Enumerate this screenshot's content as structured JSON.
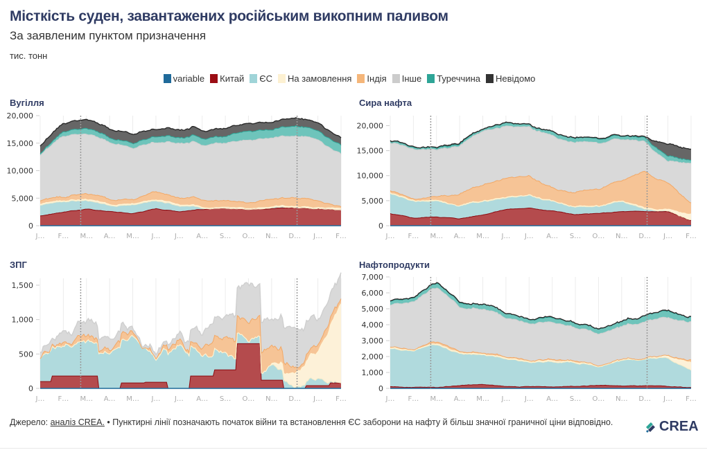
{
  "header": {
    "title": "Місткість суден, завантажених російським викопним паливом",
    "subtitle": "За заявленим пунктом призначення",
    "unit": "тис. тонн"
  },
  "legend": [
    {
      "label": "variable",
      "color": "#1f6a9a"
    },
    {
      "label": "Китай",
      "color": "#9b0d14"
    },
    {
      "label": "ЄС",
      "color": "#9fd4d8"
    },
    {
      "label": "На замовлення",
      "color": "#fdf1d2"
    },
    {
      "label": "Індія",
      "color": "#f5b67a"
    },
    {
      "label": "Інше",
      "color": "#cccccc"
    },
    {
      "label": "Туреччина",
      "color": "#2ea597"
    },
    {
      "label": "Невідомо",
      "color": "#333333"
    }
  ],
  "footer": {
    "source_prefix": "Джерело: ",
    "source_link": "аналіз CREA.",
    "note": " • Пунктирні лінії позначають початок війни та встановлення ЄС заборони на нафту й більш значної граничної ціни відповідно.",
    "logo_text": "CREA"
  },
  "chart_data": [
    {
      "type": "area",
      "stacked": true,
      "title": "Вугілля",
      "xlabel": "",
      "ylabel": "тис. тонн",
      "ylim": [
        0,
        20000
      ],
      "yticks": [
        0,
        5000,
        10000,
        15000,
        20000
      ],
      "ytick_labels": [
        "0",
        "5,000",
        "10,000",
        "15,000",
        "20,000"
      ],
      "xtick_labels": [
        "J…",
        "F…",
        "M…",
        "A…",
        "M…",
        "J…",
        "J…",
        "A…",
        "S…",
        "O…",
        "N…",
        "D…",
        "J…",
        "F…"
      ],
      "x_months": [
        0,
        1,
        2,
        3,
        4,
        5,
        6,
        7,
        8,
        9,
        10,
        11,
        12,
        13
      ],
      "vlines": [
        1.75,
        11.1
      ],
      "grid": true,
      "series": [
        {
          "name": "variable",
          "values": [
            0,
            0,
            0,
            0,
            0,
            0,
            0,
            0,
            0,
            0,
            0,
            0,
            0,
            0
          ]
        },
        {
          "name": "Китай",
          "values": [
            1800,
            2500,
            3000,
            2600,
            2200,
            3100,
            2600,
            3000,
            3100,
            3000,
            3200,
            3300,
            3100,
            2800
          ]
        },
        {
          "name": "ЄС",
          "values": [
            2000,
            2000,
            1600,
            1000,
            1500,
            1500,
            1000,
            300,
            100,
            50,
            50,
            50,
            50,
            50
          ]
        },
        {
          "name": "На замовлення",
          "values": [
            200,
            200,
            200,
            200,
            200,
            200,
            200,
            200,
            200,
            200,
            200,
            200,
            200,
            200
          ]
        },
        {
          "name": "Індія",
          "values": [
            500,
            700,
            900,
            800,
            700,
            1500,
            1200,
            1300,
            1200,
            1000,
            1600,
            1500,
            1400,
            300
          ]
        },
        {
          "name": "Інше",
          "values": [
            8300,
            11000,
            10800,
            10300,
            9400,
            9000,
            10000,
            10200,
            10400,
            11400,
            11200,
            11200,
            11000,
            9700
          ]
        },
        {
          "name": "Туреччина",
          "values": [
            300,
            800,
            1100,
            900,
            900,
            1100,
            1100,
            1200,
            1200,
            1700,
            1500,
            1800,
            1600,
            1600
          ]
        },
        {
          "name": "Невідомо",
          "values": [
            1400,
            1500,
            1600,
            1600,
            1700,
            1300,
            1400,
            1500,
            1400,
            1400,
            1400,
            1500,
            1400,
            1300
          ]
        }
      ]
    },
    {
      "type": "area",
      "stacked": true,
      "title": "Сира нафта",
      "xlabel": "",
      "ylabel": "тис. тонн",
      "ylim": [
        0,
        22000
      ],
      "yticks": [
        0,
        5000,
        10000,
        15000,
        20000
      ],
      "ytick_labels": [
        "0",
        "5,000",
        "10,000",
        "15,000",
        "20,000"
      ],
      "xtick_labels": [
        "J…",
        "F…",
        "M…",
        "A…",
        "M…",
        "J…",
        "J…",
        "A…",
        "S…",
        "O…",
        "N…",
        "D…",
        "J…",
        "F…"
      ],
      "x_months": [
        0,
        1,
        2,
        3,
        4,
        5,
        6,
        7,
        8,
        9,
        10,
        11,
        12,
        13
      ],
      "vlines": [
        1.75,
        11.1
      ],
      "grid": true,
      "series": [
        {
          "name": "variable",
          "values": [
            0,
            0,
            0,
            0,
            0,
            0,
            0,
            0,
            0,
            0,
            0,
            0,
            0,
            0
          ]
        },
        {
          "name": "Китай",
          "values": [
            2400,
            1500,
            1800,
            1400,
            2200,
            3300,
            3500,
            3000,
            2200,
            2400,
            2800,
            2800,
            2800,
            1000
          ]
        },
        {
          "name": "ЄС",
          "values": [
            4000,
            3400,
            3200,
            2400,
            2700,
            2200,
            2600,
            1800,
            1600,
            1400,
            2000,
            600,
            200,
            100
          ]
        },
        {
          "name": "На замовлення",
          "values": [
            100,
            100,
            100,
            100,
            100,
            100,
            100,
            100,
            100,
            100,
            100,
            200,
            300,
            1100
          ]
        },
        {
          "name": "Індія",
          "values": [
            400,
            300,
            800,
            2300,
            3200,
            3700,
            3800,
            2500,
            2900,
            3500,
            4000,
            7200,
            5200,
            2000
          ]
        },
        {
          "name": "Інше",
          "values": [
            9500,
            9900,
            9300,
            9700,
            10700,
            10500,
            9800,
            10400,
            10100,
            9200,
            8200,
            6000,
            4400,
            8100
          ]
        },
        {
          "name": "Туреччина",
          "values": [
            400,
            400,
            400,
            400,
            500,
            700,
            500,
            800,
            900,
            900,
            700,
            800,
            1000,
            600
          ]
        },
        {
          "name": "Невідомо",
          "values": [
            100,
            100,
            100,
            100,
            100,
            100,
            100,
            100,
            100,
            100,
            100,
            200,
            2400,
            2100
          ]
        }
      ]
    },
    {
      "type": "area",
      "stacked": true,
      "title": "ЗПГ",
      "xlabel": "",
      "ylabel": "тис. тонн",
      "ylim": [
        0,
        1600
      ],
      "yticks": [
        0,
        500,
        1000,
        1500
      ],
      "ytick_labels": [
        "0",
        "500",
        "1,000",
        "1,500"
      ],
      "xtick_labels": [
        "J…",
        "F…",
        "M…",
        "A…",
        "M…",
        "J…",
        "J…",
        "A…",
        "S…",
        "O…",
        "N…",
        "D…",
        "J…",
        "F…"
      ],
      "x_months": [
        0,
        1,
        2,
        3,
        4,
        5,
        6,
        7,
        8,
        9,
        10,
        11,
        12,
        13
      ],
      "vlines": [
        1.75,
        11.1
      ],
      "grid": true,
      "series": [
        {
          "name": "variable",
          "values": [
            0,
            0,
            0,
            0,
            0,
            0,
            0,
            0,
            0,
            0,
            0,
            0,
            0,
            0
          ]
        },
        {
          "name": "Китай",
          "values": [
            100,
            180,
            180,
            0,
            80,
            90,
            0,
            180,
            270,
            650,
            120,
            0,
            40,
            80
          ]
        },
        {
          "name": "ЄС",
          "values": [
            330,
            480,
            470,
            550,
            650,
            350,
            650,
            300,
            250,
            20,
            220,
            30,
            150,
            0
          ]
        },
        {
          "name": "На замовлення",
          "values": [
            0,
            0,
            0,
            0,
            0,
            0,
            0,
            0,
            0,
            0,
            0,
            200,
            400,
            1150
          ]
        },
        {
          "name": "Індія",
          "values": [
            20,
            30,
            40,
            40,
            40,
            30,
            80,
            100,
            200,
            270,
            240,
            80,
            100,
            50
          ]
        },
        {
          "name": "Інше",
          "values": [
            100,
            100,
            200,
            150,
            100,
            50,
            50,
            200,
            300,
            600,
            320,
            550,
            350,
            300
          ]
        },
        {
          "name": "Туреччина",
          "values": [
            0,
            0,
            0,
            0,
            0,
            0,
            0,
            0,
            0,
            0,
            0,
            0,
            0,
            0
          ]
        },
        {
          "name": "Невідомо",
          "values": [
            0,
            0,
            0,
            0,
            0,
            0,
            0,
            0,
            0,
            0,
            0,
            0,
            0,
            0
          ]
        }
      ]
    },
    {
      "type": "area",
      "stacked": true,
      "title": "Нафтопродукти",
      "xlabel": "",
      "ylabel": "тис. тонн",
      "ylim": [
        0,
        7000
      ],
      "yticks": [
        0,
        1000,
        2000,
        3000,
        4000,
        5000,
        6000,
        7000
      ],
      "ytick_labels": [
        "0",
        "1,000",
        "2,000",
        "3,000",
        "4,000",
        "5,000",
        "6,000",
        "7,000"
      ],
      "xtick_labels": [
        "J…",
        "F…",
        "M…",
        "A…",
        "M…",
        "J…",
        "J…",
        "A…",
        "S…",
        "O…",
        "N…",
        "D…",
        "J…",
        "F…"
      ],
      "x_months": [
        0,
        1,
        2,
        3,
        4,
        5,
        6,
        7,
        8,
        9,
        10,
        11,
        12,
        13
      ],
      "vlines": [
        1.75,
        11.1
      ],
      "grid": true,
      "series": [
        {
          "name": "variable",
          "values": [
            0,
            0,
            0,
            0,
            0,
            0,
            0,
            0,
            0,
            0,
            0,
            0,
            0,
            0
          ]
        },
        {
          "name": "Китай",
          "values": [
            100,
            80,
            50,
            200,
            250,
            100,
            100,
            100,
            150,
            200,
            150,
            150,
            100,
            50
          ]
        },
        {
          "name": "ЄС",
          "values": [
            2400,
            2300,
            2700,
            2000,
            1900,
            1700,
            1500,
            1600,
            1500,
            1200,
            1600,
            1700,
            1800,
            1100
          ]
        },
        {
          "name": "На замовлення",
          "values": [
            50,
            50,
            50,
            50,
            50,
            50,
            50,
            50,
            50,
            50,
            50,
            50,
            100,
            500
          ]
        },
        {
          "name": "Індія",
          "values": [
            50,
            50,
            100,
            50,
            50,
            50,
            50,
            50,
            50,
            50,
            50,
            50,
            50,
            150
          ]
        },
        {
          "name": "Інше",
          "values": [
            2600,
            3000,
            3400,
            2800,
            2800,
            2500,
            2300,
            2300,
            2100,
            2000,
            2100,
            2300,
            2400,
            2400
          ]
        },
        {
          "name": "Туреччина",
          "values": [
            250,
            250,
            300,
            300,
            300,
            300,
            300,
            300,
            300,
            300,
            300,
            400,
            400,
            300
          ]
        },
        {
          "name": "Невідомо",
          "values": [
            20,
            20,
            20,
            20,
            20,
            20,
            20,
            20,
            20,
            20,
            20,
            20,
            20,
            20
          ]
        }
      ]
    }
  ]
}
